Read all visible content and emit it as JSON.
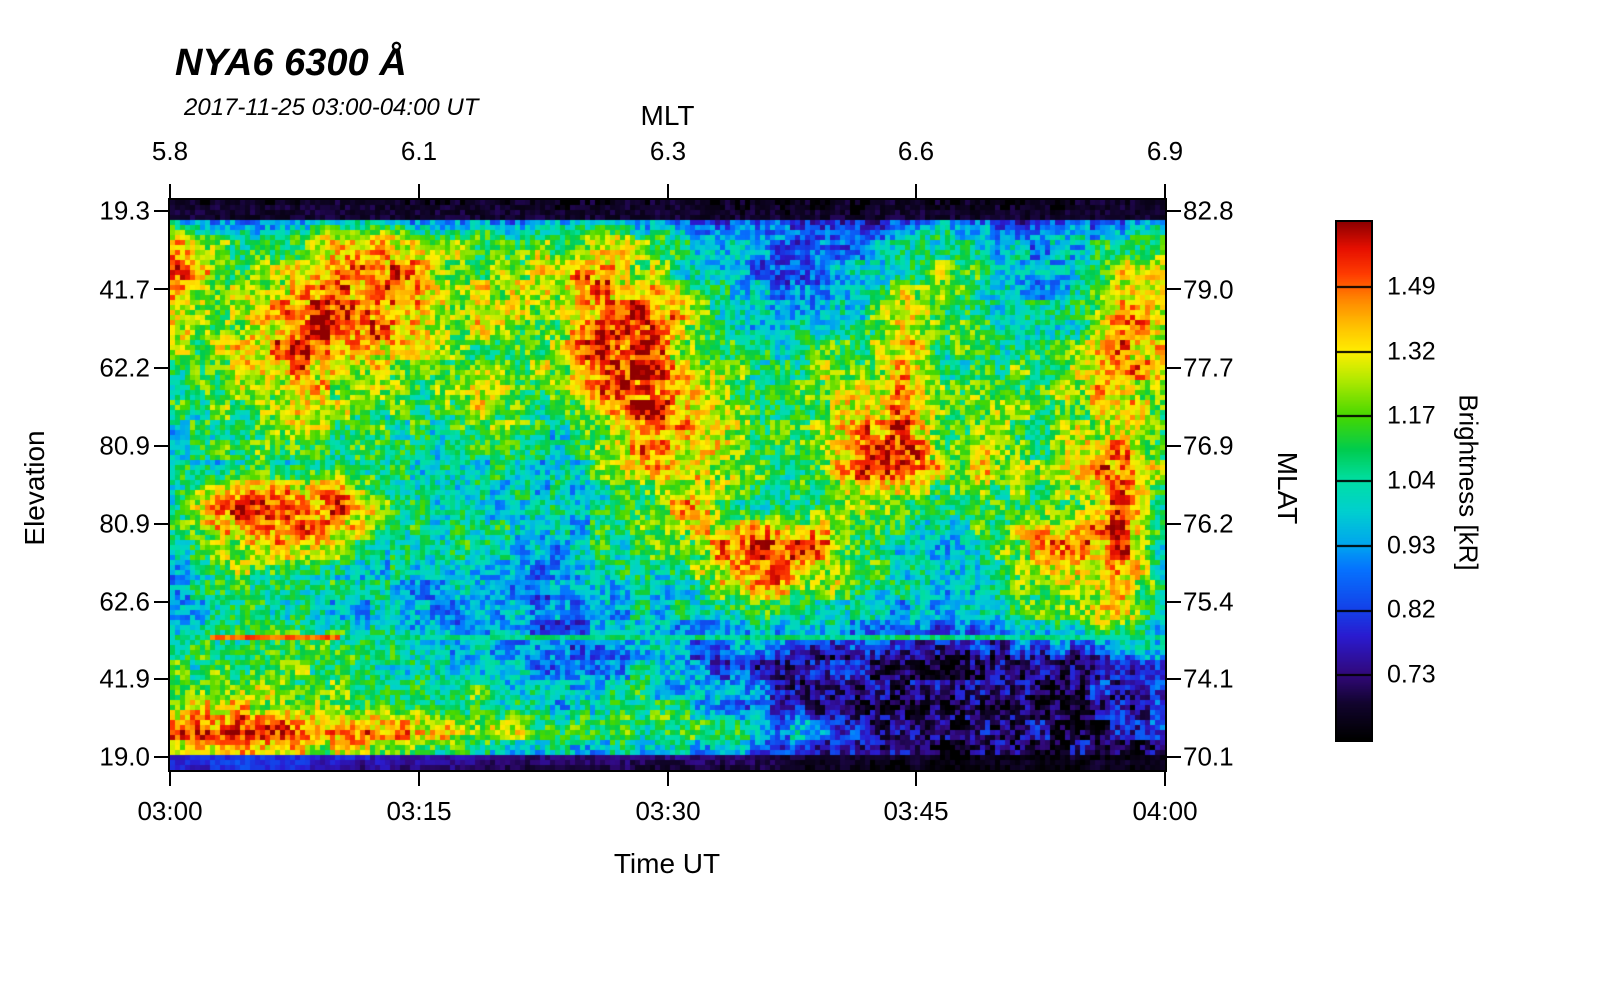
{
  "title": "NYA6 6300 Å",
  "subtitle": "2017-11-25 03:00-04:00 UT",
  "axes": {
    "top": {
      "label": "MLT",
      "ticks": [
        "5.8",
        "6.1",
        "6.3",
        "6.6",
        "6.9"
      ]
    },
    "bottom": {
      "label": "Time UT",
      "ticks": [
        "03:00",
        "03:15",
        "03:30",
        "03:45",
        "04:00"
      ]
    },
    "left": {
      "label": "Elevation",
      "ticks": [
        "19.3",
        "41.7",
        "62.2",
        "80.9",
        "80.9",
        "62.6",
        "41.9",
        "19.0"
      ]
    },
    "right": {
      "label": "MLAT",
      "ticks": [
        "82.8",
        "79.0",
        "77.7",
        "76.9",
        "76.2",
        "75.4",
        "74.1",
        "70.1"
      ]
    }
  },
  "colorbar": {
    "label": "Brightness [kR]",
    "ticks": [
      "1.49",
      "1.32",
      "1.17",
      "1.04",
      "0.93",
      "0.82",
      "0.73"
    ]
  },
  "chart_data": {
    "type": "heatmap",
    "title": "NYA6 6300 Å",
    "subtitle": "2017-11-25 03:00-04:00 UT",
    "x_axis": {
      "label": "Time UT",
      "ticks": [
        "03:00",
        "03:15",
        "03:30",
        "03:45",
        "04:00"
      ],
      "secondary_label": "MLT",
      "secondary_ticks": [
        "5.8",
        "6.1",
        "6.3",
        "6.6",
        "6.9"
      ]
    },
    "y_axis": {
      "label": "Elevation",
      "ticks": [
        "19.3",
        "41.7",
        "62.2",
        "80.9",
        "80.9",
        "62.6",
        "41.9",
        "19.0"
      ],
      "secondary_label": "MLAT",
      "secondary_ticks": [
        "82.8",
        "79.0",
        "77.7",
        "76.9",
        "76.2",
        "75.4",
        "74.1",
        "70.1"
      ]
    },
    "colorbar": {
      "label": "Brightness [kR]",
      "ticks_top_to_bottom": [
        "1.49",
        "1.32",
        "1.17",
        "1.04",
        "0.93",
        "0.82",
        "0.73"
      ]
    },
    "grid_lines": false,
    "legend_position": "right-colorbar",
    "horizontal_line_y_frac": 0.762,
    "colormap": [
      {
        "v": 0.0,
        "c": "#000000"
      },
      {
        "v": 0.07,
        "c": "#12042e"
      },
      {
        "v": 0.125,
        "c": "#31087a"
      },
      {
        "v": 0.2,
        "c": "#2a1bd0"
      },
      {
        "v": 0.25,
        "c": "#1440e8"
      },
      {
        "v": 0.33,
        "c": "#0573ff"
      },
      {
        "v": 0.375,
        "c": "#00a4f0"
      },
      {
        "v": 0.44,
        "c": "#00cfd0"
      },
      {
        "v": 0.5,
        "c": "#00dfa5"
      },
      {
        "v": 0.56,
        "c": "#00cc4f"
      },
      {
        "v": 0.625,
        "c": "#46d800"
      },
      {
        "v": 0.7,
        "c": "#b8ea00"
      },
      {
        "v": 0.75,
        "c": "#ffee00"
      },
      {
        "v": 0.8,
        "c": "#ffc000"
      },
      {
        "v": 0.85,
        "c": "#ff8800"
      },
      {
        "v": 0.9,
        "c": "#ff3c00"
      },
      {
        "v": 0.95,
        "c": "#e60f00"
      },
      {
        "v": 1.0,
        "c": "#8f0000"
      }
    ],
    "grid_description": "Normalized brightness 0-1 (0=black/min, 1=dark-red/max ~1.6 kR), 16 rows top-to-bottom x 24 cols left-to-right (03:00 to 04:00 UT), estimated from image",
    "grid": [
      [
        0.05,
        0.05,
        0.04,
        0.05,
        0.06,
        0.05,
        0.04,
        0.05,
        0.05,
        0.04,
        0.05,
        0.06,
        0.05,
        0.04,
        0.05,
        0.05,
        0.04,
        0.05,
        0.06,
        0.05,
        0.04,
        0.05,
        0.06,
        0.05
      ],
      [
        0.85,
        0.62,
        0.55,
        0.65,
        0.72,
        0.75,
        0.65,
        0.6,
        0.55,
        0.6,
        0.7,
        0.6,
        0.45,
        0.4,
        0.3,
        0.3,
        0.35,
        0.45,
        0.5,
        0.45,
        0.35,
        0.4,
        0.55,
        0.6
      ],
      [
        0.9,
        0.7,
        0.6,
        0.72,
        0.85,
        0.9,
        0.75,
        0.65,
        0.7,
        0.75,
        0.85,
        0.7,
        0.5,
        0.4,
        0.3,
        0.35,
        0.4,
        0.55,
        0.65,
        0.5,
        0.4,
        0.45,
        0.7,
        0.8
      ],
      [
        0.7,
        0.65,
        0.75,
        0.85,
        0.95,
        0.85,
        0.7,
        0.75,
        0.7,
        0.65,
        0.9,
        0.95,
        0.7,
        0.5,
        0.4,
        0.45,
        0.5,
        0.85,
        0.6,
        0.5,
        0.45,
        0.5,
        0.9,
        0.75
      ],
      [
        0.6,
        0.7,
        0.8,
        0.9,
        0.85,
        0.75,
        0.7,
        0.55,
        0.6,
        0.7,
        0.95,
        0.9,
        0.65,
        0.55,
        0.5,
        0.6,
        0.55,
        0.75,
        0.55,
        0.6,
        0.5,
        0.6,
        0.85,
        0.7
      ],
      [
        0.55,
        0.6,
        0.7,
        0.75,
        0.7,
        0.65,
        0.6,
        0.75,
        0.65,
        0.6,
        0.85,
        0.95,
        0.8,
        0.6,
        0.55,
        0.65,
        0.7,
        0.85,
        0.6,
        0.55,
        0.6,
        0.7,
        0.8,
        0.65
      ],
      [
        0.5,
        0.55,
        0.6,
        0.65,
        0.6,
        0.55,
        0.5,
        0.6,
        0.55,
        0.5,
        0.7,
        0.9,
        0.85,
        0.7,
        0.6,
        0.65,
        0.85,
        0.9,
        0.65,
        0.7,
        0.6,
        0.65,
        0.75,
        0.6
      ],
      [
        0.45,
        0.5,
        0.55,
        0.5,
        0.55,
        0.5,
        0.45,
        0.5,
        0.45,
        0.4,
        0.6,
        0.8,
        0.7,
        0.6,
        0.55,
        0.6,
        0.9,
        0.95,
        0.7,
        0.75,
        0.6,
        0.7,
        0.9,
        0.6
      ],
      [
        0.5,
        0.9,
        0.95,
        0.85,
        0.9,
        0.6,
        0.5,
        0.45,
        0.5,
        0.45,
        0.5,
        0.6,
        0.85,
        0.6,
        0.5,
        0.55,
        0.7,
        0.6,
        0.55,
        0.6,
        0.55,
        0.65,
        0.9,
        0.55
      ],
      [
        0.45,
        0.6,
        0.85,
        0.8,
        0.7,
        0.5,
        0.45,
        0.5,
        0.45,
        0.4,
        0.5,
        0.55,
        0.6,
        0.9,
        0.95,
        0.85,
        0.6,
        0.5,
        0.45,
        0.55,
        0.8,
        0.85,
        0.9,
        0.5
      ],
      [
        0.4,
        0.5,
        0.6,
        0.55,
        0.5,
        0.45,
        0.4,
        0.45,
        0.4,
        0.35,
        0.45,
        0.5,
        0.55,
        0.8,
        0.85,
        0.7,
        0.55,
        0.45,
        0.4,
        0.5,
        0.7,
        0.75,
        0.85,
        0.45
      ],
      [
        0.35,
        0.45,
        0.55,
        0.5,
        0.45,
        0.4,
        0.35,
        0.4,
        0.35,
        0.3,
        0.4,
        0.45,
        0.4,
        0.5,
        0.55,
        0.5,
        0.45,
        0.4,
        0.35,
        0.45,
        0.6,
        0.65,
        0.8,
        0.4
      ],
      [
        0.5,
        0.55,
        0.6,
        0.55,
        0.6,
        0.5,
        0.45,
        0.4,
        0.35,
        0.3,
        0.35,
        0.4,
        0.3,
        0.25,
        0.2,
        0.15,
        0.2,
        0.15,
        0.1,
        0.15,
        0.2,
        0.15,
        0.3,
        0.35
      ],
      [
        0.6,
        0.65,
        0.7,
        0.6,
        0.65,
        0.55,
        0.5,
        0.55,
        0.45,
        0.4,
        0.45,
        0.5,
        0.45,
        0.35,
        0.25,
        0.15,
        0.1,
        0.1,
        0.08,
        0.1,
        0.15,
        0.1,
        0.2,
        0.25
      ],
      [
        0.85,
        0.9,
        0.95,
        0.9,
        0.85,
        0.9,
        0.8,
        0.7,
        0.65,
        0.6,
        0.6,
        0.55,
        0.6,
        0.55,
        0.4,
        0.3,
        0.2,
        0.15,
        0.1,
        0.12,
        0.15,
        0.1,
        0.15,
        0.2
      ],
      [
        0.6,
        0.7,
        0.75,
        0.65,
        0.5,
        0.45,
        0.4,
        0.35,
        0.3,
        0.3,
        0.25,
        0.25,
        0.3,
        0.25,
        0.2,
        0.15,
        0.1,
        0.08,
        0.05,
        0.08,
        0.1,
        0.08,
        0.1,
        0.12
      ]
    ]
  }
}
